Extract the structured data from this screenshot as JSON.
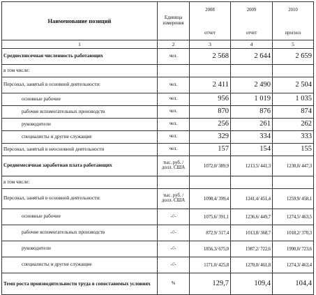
{
  "header": {
    "name": "Наименование позиций",
    "unit": "Единица измерения",
    "years": [
      {
        "year": "2008",
        "status": "отчет"
      },
      {
        "year": "2009",
        "status": "отчет"
      },
      {
        "year": "2010",
        "status": "прогноз"
      }
    ]
  },
  "colnums": [
    "1",
    "2",
    "3",
    "4",
    "5"
  ],
  "rows": [
    {
      "label": "Среднесписочная численность работающих",
      "unit": "чел.",
      "v": [
        "2 568",
        "2 644",
        "2 659"
      ]
    },
    {
      "label": "в том числе:",
      "unit": "",
      "v": [
        "",
        "",
        ""
      ]
    },
    {
      "label": "Персонал, занятый в основной деятельности:",
      "unit": "чел.",
      "v": [
        "2 411",
        "2 490",
        "2 504"
      ]
    },
    {
      "label": "основные рабочие",
      "unit": "чел.",
      "v": [
        "956",
        "1 019",
        "1 035"
      ]
    },
    {
      "label": "рабочие вспомогательных производств",
      "unit": "чел.",
      "v": [
        "870",
        "876",
        "874"
      ]
    },
    {
      "label": "руководители",
      "unit": "чел.",
      "v": [
        "256",
        "261",
        "262"
      ]
    },
    {
      "label": "специалисты и другие служащие",
      "unit": "чел.",
      "v": [
        "329",
        "334",
        "333"
      ]
    },
    {
      "label": "Персонал, занятый в неосновной деятельности",
      "unit": "чел.",
      "v": [
        "157",
        "154",
        "155"
      ]
    },
    {
      "label": "Среднемесячная заработная плата работающих",
      "unit": "тыс. руб. / долл. США",
      "v": [
        "1072,0/ 389,9",
        "1213,5/ 441,3",
        "1230,0/ 447,3"
      ]
    },
    {
      "label": "в том числе:",
      "unit": "",
      "v": [
        "",
        "",
        ""
      ]
    },
    {
      "label": "Персонал, занятый в основной деятельности:",
      "unit": "тыс. руб. / долл. США",
      "v": [
        "1098,4/ 399,4",
        "1241,4/ 451,4",
        "1259,9/ 458,1"
      ]
    },
    {
      "label": "основные рабочие",
      "unit": "-//-",
      "v": [
        "1075,6/ 391,1",
        "1236,6/ 449,7",
        "1274,5/ 463,5"
      ]
    },
    {
      "label": "рабочие вспомогательных производств",
      "unit": "-//-",
      "v": [
        "872,9/ 317,4",
        "1013,8/ 368,7",
        "1018,2/ 370,3"
      ]
    },
    {
      "label": "руководители",
      "unit": "-//-",
      "v": [
        "1856,3/ 675,0",
        "1987,2/ 722,6",
        "1990,0/ 723,6"
      ]
    },
    {
      "label": "специалисты и другие служащие",
      "unit": "-//-",
      "v": [
        "1171,0/ 425,8",
        "1270,0/ 461,8",
        "1274,3/ 463,4"
      ]
    },
    {
      "label": "Темп роста производительности труда в сопоставимых условиях",
      "unit": "%",
      "v": [
        "129,7",
        "109,4",
        "104,4"
      ]
    }
  ]
}
